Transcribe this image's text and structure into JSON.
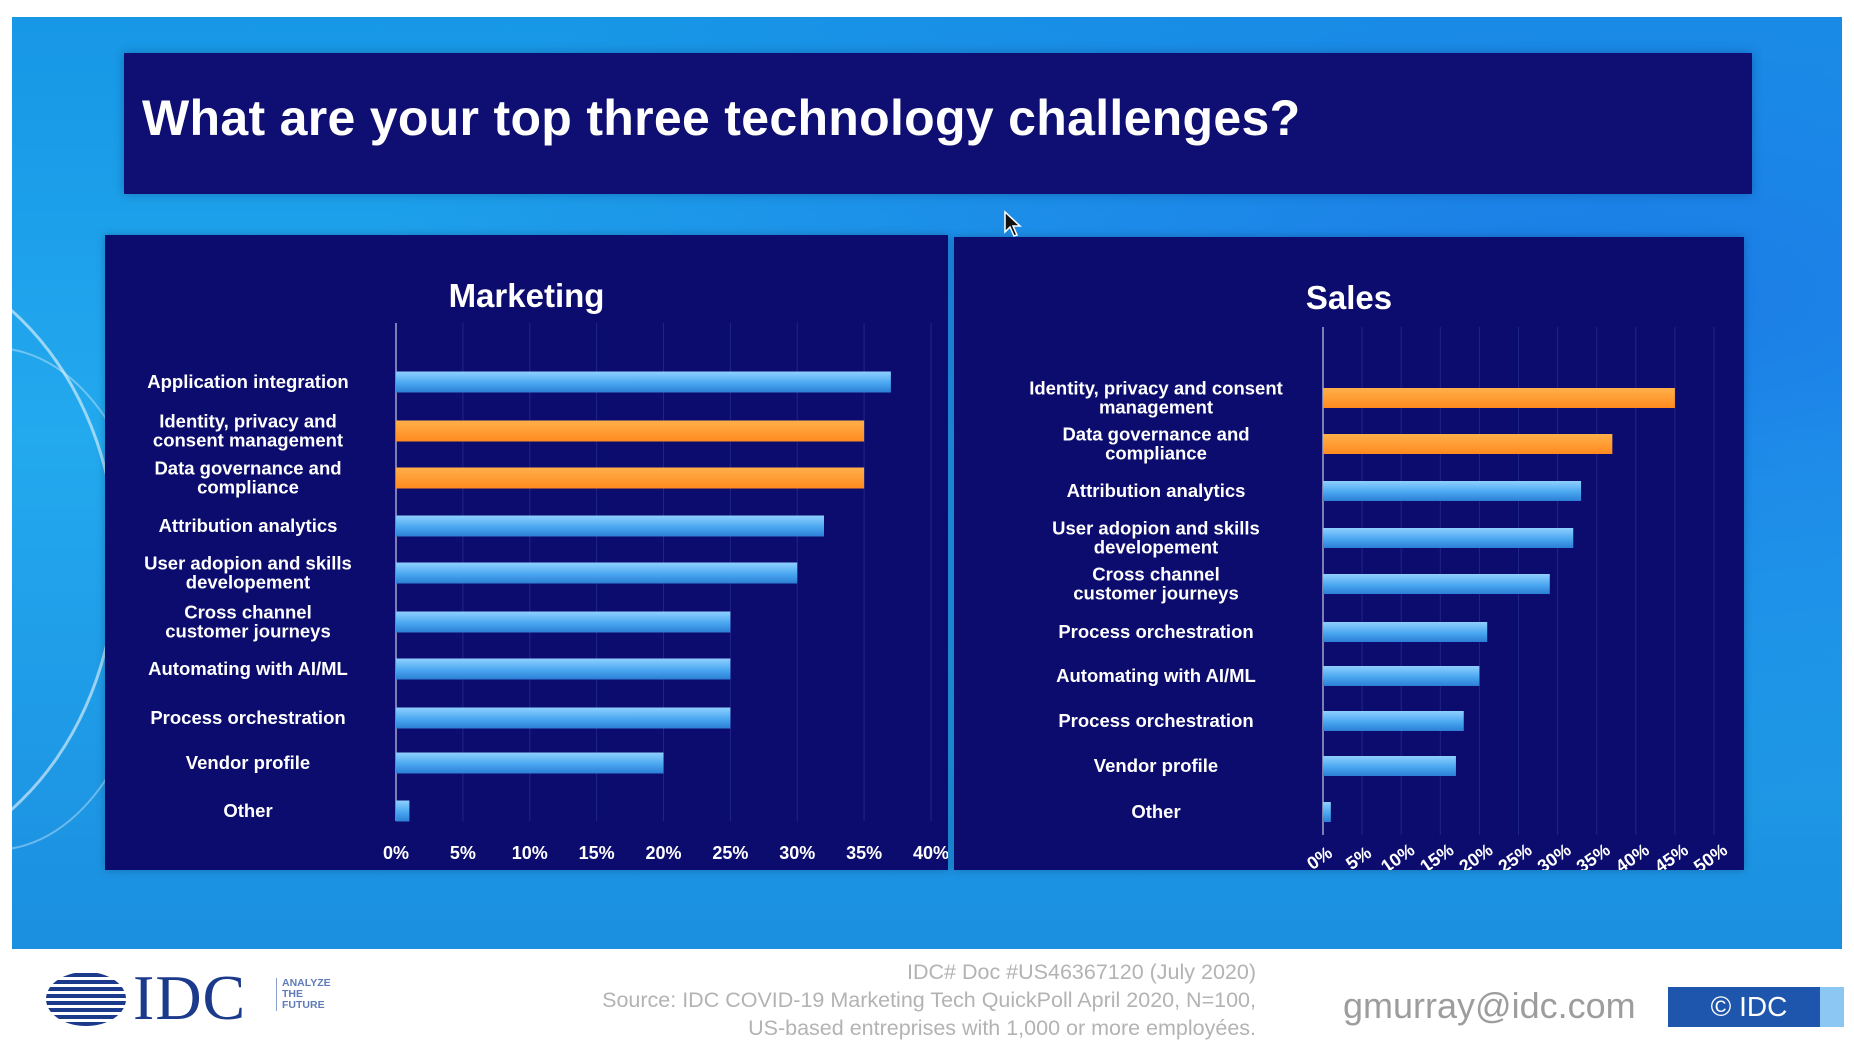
{
  "title": "What are your top three technology challenges?",
  "colors": {
    "blue_bar": "#4aa7f0",
    "orange_bar": "#ff8a1f",
    "panel": "#0c0c6e",
    "title_bar": "#0f0f73"
  },
  "chart_data": [
    {
      "type": "bar",
      "orientation": "horizontal",
      "title": "Marketing",
      "categories": [
        "Application integration",
        "Identity, privacy and consent management",
        "Data governance and compliance",
        "Attribution analytics",
        "User adopion and skills developement",
        "Cross channel customer journeys",
        "Automating with AI/ML",
        "Process orchestration",
        "Vendor profile",
        "Other"
      ],
      "category_lines": [
        [
          "Application integration"
        ],
        [
          "Identity, privacy and",
          "consent management"
        ],
        [
          "Data governance and",
          "compliance"
        ],
        [
          "Attribution analytics"
        ],
        [
          "User adopion and skills",
          "developement"
        ],
        [
          "Cross channel",
          "customer journeys"
        ],
        [
          "Automating with AI/ML"
        ],
        [
          "Process orchestration"
        ],
        [
          "Vendor profile"
        ],
        [
          "Other"
        ]
      ],
      "values": [
        37,
        35,
        35,
        32,
        30,
        25,
        25,
        25,
        20,
        1
      ],
      "highlighted": [
        false,
        true,
        true,
        false,
        false,
        false,
        false,
        false,
        false,
        false
      ],
      "xlim": [
        0,
        40
      ],
      "ticks": [
        "0%",
        "5%",
        "10%",
        "15%",
        "20%",
        "25%",
        "30%",
        "35%",
        "40%"
      ],
      "tick_values": [
        0,
        5,
        10,
        15,
        20,
        25,
        30,
        35,
        40
      ],
      "xlabel": "",
      "ylabel": ""
    },
    {
      "type": "bar",
      "orientation": "horizontal",
      "title": "Sales",
      "categories": [
        "Identity, privacy and consent management",
        "Data governance and compliance",
        "Attribution analytics",
        "User adopion and skills developement",
        "Cross channel customer journeys",
        "Process orchestration",
        "Automating with AI/ML",
        "Process orchestration",
        "Vendor profile",
        "Other"
      ],
      "category_lines": [
        [
          "Identity, privacy and consent",
          "management"
        ],
        [
          "Data governance and",
          "compliance"
        ],
        [
          "Attribution analytics"
        ],
        [
          "User adopion and skills",
          "developement"
        ],
        [
          "Cross channel",
          "customer journeys"
        ],
        [
          "Process orchestration"
        ],
        [
          "Automating with AI/ML"
        ],
        [
          "Process orchestration"
        ],
        [
          "Vendor profile"
        ],
        [
          "Other"
        ]
      ],
      "values": [
        45,
        37,
        33,
        32,
        29,
        21,
        20,
        18,
        17,
        1
      ],
      "highlighted": [
        true,
        true,
        false,
        false,
        false,
        false,
        false,
        false,
        false,
        false
      ],
      "xlim": [
        0,
        50
      ],
      "ticks": [
        "0%",
        "5%",
        "10%",
        "15%",
        "20%",
        "25%",
        "30%",
        "35%",
        "40%",
        "45%",
        "50%"
      ],
      "tick_values": [
        0,
        5,
        10,
        15,
        20,
        25,
        30,
        35,
        40,
        45,
        50
      ],
      "xlabel": "",
      "ylabel": ""
    }
  ],
  "footer": {
    "logo_text": "IDC",
    "tagline": [
      "ANALYZE",
      "THE",
      "FUTURE"
    ],
    "doc_id": "IDC# Doc #US46367120 (July 2020)",
    "source_line1": "Source: IDC COVID-19 Marketing Tech QuickPoll April 2020, N=100,",
    "source_line2": "US-based entreprises with 1,000 or more employées.",
    "email": "gmurray@idc.com",
    "copyright": "© IDC"
  }
}
